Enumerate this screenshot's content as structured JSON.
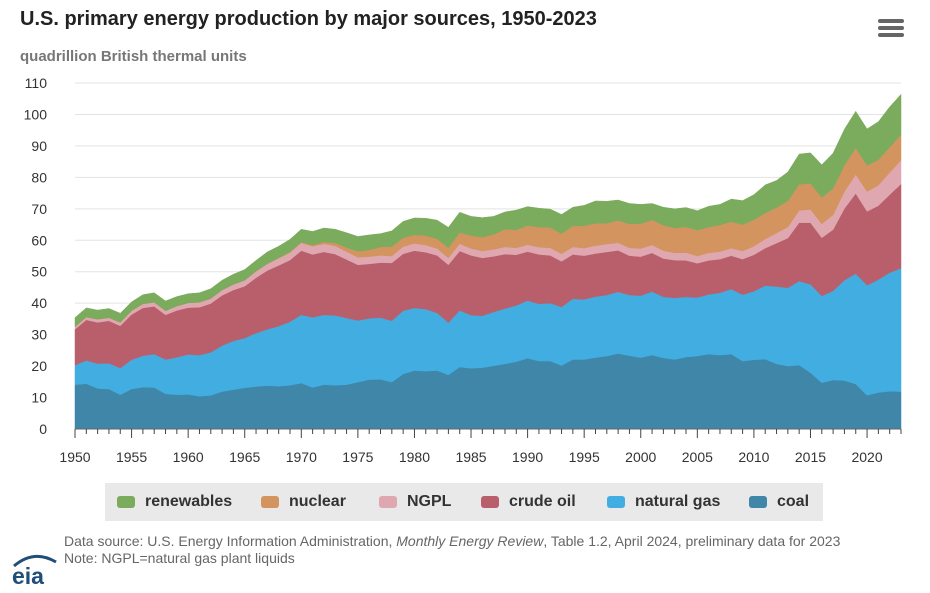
{
  "title": "U.S. primary energy production by major sources, 1950-2023",
  "subtitle": "quadrillion British thermal units",
  "menu_icon": "hamburger-menu-icon",
  "footer": {
    "source_prefix": "Data source: U.S. Energy Information Administration, ",
    "source_italic": "Monthly Energy Review",
    "source_suffix": ", Table 1.2, April 2024, preliminary data for 2023",
    "note": "Note: NGPL=natural gas plant liquids"
  },
  "logo_text": "eia",
  "colors": {
    "coal": "#3f86a8",
    "natural_gas": "#41ade0",
    "crude_oil": "#b95f6c",
    "ngpl": "#dfa7b0",
    "nuclear": "#d3945f",
    "renewables": "#7bab5d",
    "legend_bg": "#e9e9e9"
  },
  "legend": [
    {
      "label": "renewables",
      "color": "#7bab5d"
    },
    {
      "label": "nuclear",
      "color": "#d3945f"
    },
    {
      "label": "NGPL",
      "color": "#dfa7b0"
    },
    {
      "label": "crude oil",
      "color": "#b95f6c"
    },
    {
      "label": "natural gas",
      "color": "#41ade0"
    },
    {
      "label": "coal",
      "color": "#3f86a8"
    }
  ],
  "chart_data": {
    "type": "area",
    "stacked": true,
    "title": "U.S. primary energy production by major sources, 1950-2023",
    "ylabel": "quadrillion British thermal units",
    "xlabel": "",
    "xlim": [
      1950,
      2023
    ],
    "ylim": [
      0,
      110
    ],
    "x_ticks": [
      1950,
      1955,
      1960,
      1965,
      1970,
      1975,
      1980,
      1985,
      1990,
      1995,
      2000,
      2005,
      2010,
      2015,
      2020
    ],
    "y_ticks": [
      0,
      10,
      20,
      30,
      40,
      50,
      60,
      70,
      80,
      90,
      100,
      110
    ],
    "grid": "horizontal",
    "legend_position": "bottom",
    "x": [
      1950,
      1951,
      1952,
      1953,
      1954,
      1955,
      1956,
      1957,
      1958,
      1959,
      1960,
      1961,
      1962,
      1963,
      1964,
      1965,
      1966,
      1967,
      1968,
      1969,
      1970,
      1971,
      1972,
      1973,
      1974,
      1975,
      1976,
      1977,
      1978,
      1979,
      1980,
      1981,
      1982,
      1983,
      1984,
      1985,
      1986,
      1987,
      1988,
      1989,
      1990,
      1991,
      1992,
      1993,
      1994,
      1995,
      1996,
      1997,
      1998,
      1999,
      2000,
      2001,
      2002,
      2003,
      2004,
      2005,
      2006,
      2007,
      2008,
      2009,
      2010,
      2011,
      2012,
      2013,
      2014,
      2015,
      2016,
      2017,
      2018,
      2019,
      2020,
      2021,
      2022,
      2023
    ],
    "series": [
      {
        "name": "coal",
        "values": [
          14.1,
          14.4,
          12.9,
          12.7,
          10.9,
          12.7,
          13.3,
          13.2,
          11.2,
          10.9,
          11.0,
          10.4,
          10.7,
          11.9,
          12.5,
          13.1,
          13.5,
          13.8,
          13.6,
          13.9,
          14.6,
          13.2,
          14.1,
          13.9,
          14.1,
          14.9,
          15.7,
          15.8,
          14.9,
          17.5,
          18.6,
          18.4,
          18.6,
          17.2,
          19.7,
          19.3,
          19.5,
          20.1,
          20.7,
          21.4,
          22.5,
          21.6,
          21.6,
          20.2,
          22.1,
          22.1,
          22.7,
          23.2,
          24.0,
          23.3,
          22.7,
          23.5,
          22.6,
          22.1,
          22.9,
          23.2,
          23.8,
          23.5,
          23.8,
          21.6,
          22.0,
          22.2,
          20.7,
          20.0,
          20.3,
          17.9,
          14.7,
          15.6,
          15.4,
          14.3,
          10.7,
          11.6,
          12.0,
          11.9
        ]
      },
      {
        "name": "natural gas",
        "values": [
          6.2,
          7.4,
          7.9,
          8.2,
          8.5,
          9.3,
          10.0,
          10.6,
          10.9,
          11.9,
          12.7,
          13.1,
          13.7,
          14.6,
          15.5,
          15.8,
          17.0,
          17.9,
          19.1,
          20.2,
          21.7,
          22.3,
          22.2,
          22.2,
          21.2,
          19.6,
          19.5,
          19.6,
          19.5,
          20.1,
          19.9,
          19.7,
          18.3,
          16.6,
          18.0,
          16.9,
          16.5,
          17.1,
          17.6,
          17.9,
          18.3,
          18.2,
          18.4,
          18.6,
          19.3,
          19.1,
          19.4,
          19.4,
          19.6,
          19.3,
          19.7,
          20.2,
          19.4,
          19.6,
          19.1,
          18.6,
          19.0,
          19.8,
          20.7,
          21.1,
          21.8,
          23.4,
          24.6,
          24.9,
          26.7,
          28.1,
          27.6,
          28.3,
          31.9,
          35.1,
          35.0,
          35.9,
          37.7,
          39.2
        ]
      },
      {
        "name": "crude oil",
        "values": [
          11.4,
          12.9,
          13.1,
          13.5,
          13.4,
          14.4,
          15.2,
          15.2,
          14.2,
          14.9,
          14.9,
          15.2,
          15.5,
          16.0,
          16.2,
          16.5,
          17.6,
          18.7,
          19.3,
          19.6,
          20.4,
          20.0,
          20.0,
          19.5,
          18.6,
          17.7,
          17.3,
          17.5,
          18.4,
          18.1,
          18.2,
          18.1,
          18.3,
          18.4,
          18.9,
          19.0,
          18.4,
          17.7,
          17.3,
          16.1,
          15.6,
          15.7,
          15.2,
          14.5,
          14.1,
          13.9,
          13.7,
          13.7,
          13.2,
          12.5,
          12.4,
          12.3,
          12.2,
          12.0,
          11.6,
          10.9,
          10.8,
          10.7,
          10.6,
          11.3,
          11.6,
          11.9,
          13.8,
          15.8,
          18.6,
          19.6,
          18.5,
          19.5,
          22.8,
          25.5,
          23.5,
          23.5,
          24.8,
          26.8
        ]
      },
      {
        "name": "NGPL",
        "values": [
          0.8,
          0.9,
          1.0,
          1.0,
          1.1,
          1.2,
          1.3,
          1.3,
          1.3,
          1.4,
          1.5,
          1.6,
          1.6,
          1.7,
          1.8,
          1.9,
          2.0,
          2.1,
          2.3,
          2.4,
          2.5,
          2.6,
          2.6,
          2.6,
          2.5,
          2.4,
          2.3,
          2.3,
          2.2,
          2.3,
          2.3,
          2.3,
          2.2,
          2.2,
          2.3,
          2.2,
          2.2,
          2.2,
          2.3,
          2.2,
          2.2,
          2.3,
          2.4,
          2.4,
          2.4,
          2.4,
          2.5,
          2.5,
          2.4,
          2.5,
          2.6,
          2.5,
          2.5,
          2.3,
          2.5,
          2.3,
          2.4,
          2.4,
          2.4,
          2.6,
          2.7,
          2.9,
          3.2,
          3.5,
          3.9,
          4.2,
          4.4,
          4.7,
          5.4,
          6.0,
          6.3,
          6.5,
          7.0,
          7.6
        ]
      },
      {
        "name": "nuclear",
        "values": [
          0.0,
          0.0,
          0.0,
          0.0,
          0.0,
          0.0,
          0.0,
          0.0,
          0.0,
          0.0,
          0.0,
          0.0,
          0.0,
          0.0,
          0.0,
          0.0,
          0.1,
          0.1,
          0.1,
          0.2,
          0.2,
          0.4,
          0.6,
          0.9,
          1.3,
          1.9,
          2.1,
          2.7,
          3.0,
          2.8,
          2.7,
          3.0,
          3.1,
          3.2,
          3.6,
          4.1,
          4.4,
          4.8,
          5.6,
          5.7,
          6.1,
          6.4,
          6.5,
          6.4,
          6.7,
          7.1,
          7.1,
          6.6,
          7.1,
          7.6,
          7.9,
          8.0,
          8.1,
          7.9,
          8.2,
          8.2,
          8.2,
          8.5,
          8.4,
          8.4,
          8.4,
          8.3,
          8.1,
          8.3,
          8.3,
          8.3,
          8.4,
          8.4,
          8.4,
          8.5,
          8.3,
          8.1,
          8.1,
          8.1
        ]
      },
      {
        "name": "renewables",
        "values": [
          2.9,
          2.9,
          2.9,
          2.9,
          2.9,
          2.8,
          2.9,
          3.0,
          3.1,
          3.0,
          2.9,
          3.0,
          3.1,
          3.1,
          3.2,
          3.4,
          3.4,
          3.7,
          3.7,
          4.0,
          4.1,
          4.3,
          4.4,
          4.4,
          4.7,
          4.7,
          4.8,
          4.2,
          5.0,
          5.2,
          5.4,
          5.5,
          5.9,
          6.5,
          6.4,
          6.1,
          6.2,
          5.7,
          5.5,
          6.3,
          6.0,
          6.0,
          5.8,
          6.1,
          5.9,
          6.5,
          7.1,
          7.0,
          6.5,
          6.5,
          6.1,
          5.2,
          5.7,
          6.1,
          6.1,
          6.2,
          6.6,
          6.5,
          7.2,
          7.6,
          8.0,
          8.9,
          8.6,
          9.2,
          9.6,
          9.7,
          10.4,
          11.2,
          11.4,
          11.6,
          11.6,
          12.1,
          12.8,
          12.8
        ]
      }
    ]
  }
}
